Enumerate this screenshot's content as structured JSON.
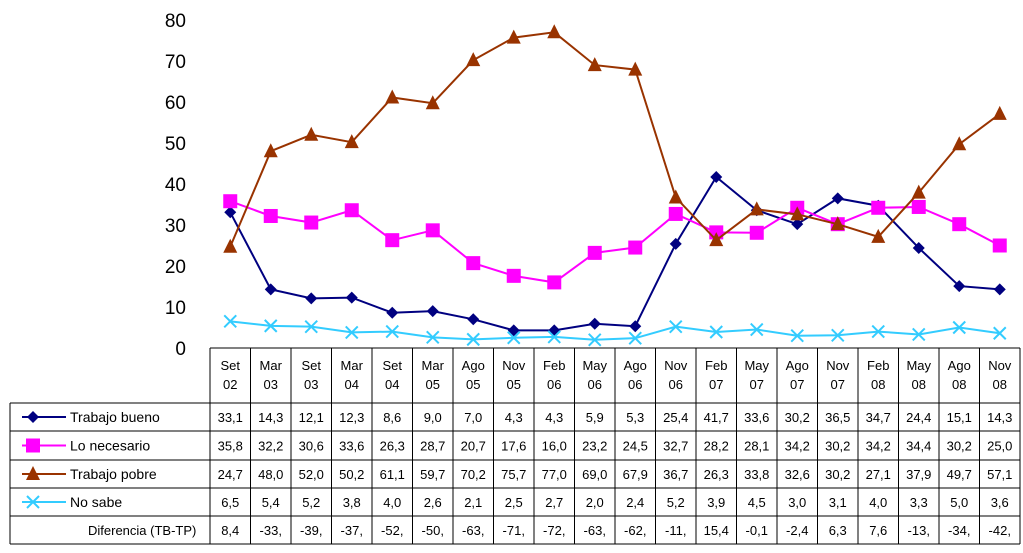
{
  "chart_data": {
    "type": "line",
    "title": "",
    "xlabel": "",
    "ylabel": "",
    "ylim": [
      0,
      80
    ],
    "yticks": [
      0,
      10,
      20,
      30,
      40,
      50,
      60,
      70,
      80
    ],
    "grid": false,
    "legend": "data-table-left",
    "categories": [
      [
        "Set",
        "02"
      ],
      [
        "Mar",
        "03"
      ],
      [
        "Set",
        "03"
      ],
      [
        "Mar",
        "04"
      ],
      [
        "Set",
        "04"
      ],
      [
        "Mar",
        "05"
      ],
      [
        "Ago",
        "05"
      ],
      [
        "Nov",
        "05"
      ],
      [
        "Feb",
        "06"
      ],
      [
        "May",
        "06"
      ],
      [
        "Ago",
        "06"
      ],
      [
        "Nov",
        "06"
      ],
      [
        "Feb",
        "07"
      ],
      [
        "May",
        "07"
      ],
      [
        "Ago",
        "07"
      ],
      [
        "Nov",
        "07"
      ],
      [
        "Feb",
        "08"
      ],
      [
        "May",
        "08"
      ],
      [
        "Ago",
        "08"
      ],
      [
        "Nov",
        "08"
      ]
    ],
    "series": [
      {
        "name": "Trabajo bueno",
        "color": "#000080",
        "marker": "diamond",
        "values": [
          33.1,
          14.3,
          12.1,
          12.3,
          8.6,
          9.0,
          7.0,
          4.3,
          4.3,
          5.9,
          5.3,
          25.4,
          41.7,
          33.6,
          30.2,
          36.5,
          34.7,
          24.4,
          15.1,
          14.3
        ],
        "labels": [
          "33,1",
          "14,3",
          "12,1",
          "12,3",
          "8,6",
          "9,0",
          "7,0",
          "4,3",
          "4,3",
          "5,9",
          "5,3",
          "25,4",
          "41,7",
          "33,6",
          "30,2",
          "36,5",
          "34,7",
          "24,4",
          "15,1",
          "14,3"
        ]
      },
      {
        "name": "Lo necesario",
        "color": "#ff00ff",
        "marker": "square",
        "values": [
          35.8,
          32.2,
          30.6,
          33.6,
          26.3,
          28.7,
          20.7,
          17.6,
          16.0,
          23.2,
          24.5,
          32.7,
          28.2,
          28.1,
          34.2,
          30.2,
          34.2,
          34.4,
          30.2,
          25.0
        ],
        "labels": [
          "35,8",
          "32,2",
          "30,6",
          "33,6",
          "26,3",
          "28,7",
          "20,7",
          "17,6",
          "16,0",
          "23,2",
          "24,5",
          "32,7",
          "28,2",
          "28,1",
          "34,2",
          "30,2",
          "34,2",
          "34,4",
          "30,2",
          "25,0"
        ]
      },
      {
        "name": "Trabajo pobre",
        "color": "#993300",
        "marker": "triangle",
        "values": [
          24.7,
          48.0,
          52.0,
          50.2,
          61.1,
          59.7,
          70.2,
          75.7,
          77.0,
          69.0,
          67.9,
          36.7,
          26.3,
          33.8,
          32.6,
          30.2,
          27.1,
          37.9,
          49.7,
          57.1
        ],
        "labels": [
          "24,7",
          "48,0",
          "52,0",
          "50,2",
          "61,1",
          "59,7",
          "70,2",
          "75,7",
          "77,0",
          "69,0",
          "67,9",
          "36,7",
          "26,3",
          "33,8",
          "32,6",
          "30,2",
          "27,1",
          "37,9",
          "49,7",
          "57,1"
        ]
      },
      {
        "name": "No sabe",
        "color": "#33ccff",
        "marker": "x",
        "values": [
          6.5,
          5.4,
          5.2,
          3.8,
          4.0,
          2.6,
          2.1,
          2.5,
          2.7,
          2.0,
          2.4,
          5.2,
          3.9,
          4.5,
          3.0,
          3.1,
          4.0,
          3.3,
          5.0,
          3.6
        ],
        "labels": [
          "6,5",
          "5,4",
          "5,2",
          "3,8",
          "4,0",
          "2,6",
          "2,1",
          "2,5",
          "2,7",
          "2,0",
          "2,4",
          "5,2",
          "3,9",
          "4,5",
          "3,0",
          "3,1",
          "4,0",
          "3,3",
          "5,0",
          "3,6"
        ]
      }
    ],
    "table_extra_row": {
      "name": "Diferencia  (TB-TP)",
      "labels": [
        "8,4",
        "-33,",
        "-39,",
        "-37,",
        "-52,",
        "-50,",
        "-63,",
        "-71,",
        "-72,",
        "-63,",
        "-62,",
        "-11,",
        "15,4",
        "-0,1",
        "-2,4",
        "6,3",
        "7,6",
        "-13,",
        "-34,",
        "-42,"
      ]
    }
  }
}
